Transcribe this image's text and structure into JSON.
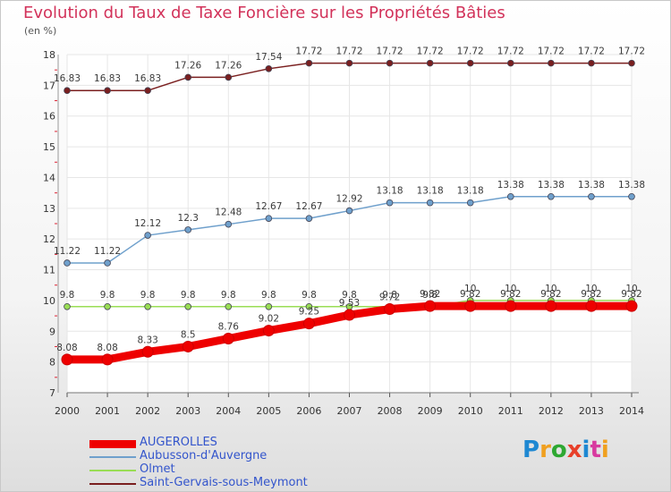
{
  "title": "Evolution du Taux de Taxe Foncière sur les Propriétés Bâties",
  "unit_label": "(en %)",
  "logo": {
    "text": "Proxiti",
    "colors": [
      "#1e88d2",
      "#f0a020",
      "#2ea832",
      "#e8402a",
      "#1e88d2",
      "#d83aa0",
      "#f0a020"
    ]
  },
  "chart_data": {
    "type": "line",
    "x": [
      "2000",
      "2001",
      "2002",
      "2003",
      "2004",
      "2005",
      "2006",
      "2007",
      "2008",
      "2009",
      "2010",
      "2011",
      "2012",
      "2013",
      "2014"
    ],
    "ylim": [
      7,
      18
    ],
    "yticks": [
      "7",
      "8",
      "9",
      "10",
      "11",
      "12",
      "13",
      "14",
      "15",
      "16",
      "17",
      "18"
    ],
    "grid": true,
    "legend_position": "bottom-left",
    "series": [
      {
        "name": "AUGEROLLES",
        "color": "#ee0000",
        "thick": true,
        "values": [
          8.08,
          8.08,
          8.33,
          8.5,
          8.76,
          9.02,
          9.25,
          9.53,
          9.72,
          9.82,
          9.82,
          9.82,
          9.82,
          9.82,
          9.82
        ],
        "labels": [
          "8.08",
          "8.08",
          "8.33",
          "8.5",
          "8.76",
          "9.02",
          "9.25",
          "9.53",
          "9.72",
          "9.82",
          "9.82",
          "9.82",
          "9.82",
          "9.82",
          "9.82"
        ]
      },
      {
        "name": "Aubusson-d'Auvergne",
        "color": "#6fa0cc",
        "thick": false,
        "values": [
          11.22,
          11.22,
          12.12,
          12.3,
          12.48,
          12.67,
          12.67,
          12.92,
          13.18,
          13.18,
          13.18,
          13.38,
          13.38,
          13.38,
          13.38
        ],
        "labels": [
          "11.22",
          "11.22",
          "12.12",
          "12.3",
          "12.48",
          "12.67",
          "12.67",
          "12.92",
          "13.18",
          "13.18",
          "13.18",
          "13.38",
          "13.38",
          "13.38",
          "13.38"
        ]
      },
      {
        "name": "Olmet",
        "color": "#99dd55",
        "thick": false,
        "values": [
          9.8,
          9.8,
          9.8,
          9.8,
          9.8,
          9.8,
          9.8,
          9.8,
          9.8,
          9.8,
          10,
          10,
          10,
          10,
          10
        ],
        "labels": [
          "9.8",
          "9.8",
          "9.8",
          "9.8",
          "9.8",
          "9.8",
          "9.8",
          "9.8",
          "9.8",
          "9.8",
          "10",
          "10",
          "10",
          "10",
          "10"
        ]
      },
      {
        "name": "Saint-Gervais-sous-Meymont",
        "color": "#7a1f1f",
        "thick": false,
        "values": [
          16.83,
          16.83,
          16.83,
          17.26,
          17.26,
          17.54,
          17.72,
          17.72,
          17.72,
          17.72,
          17.72,
          17.72,
          17.72,
          17.72,
          17.72
        ],
        "labels": [
          "16.83",
          "16.83",
          "16.83",
          "17.26",
          "17.26",
          "17.54",
          "17.72",
          "17.72",
          "17.72",
          "17.72",
          "17.72",
          "17.72",
          "17.72",
          "17.72",
          "17.72"
        ]
      }
    ]
  }
}
